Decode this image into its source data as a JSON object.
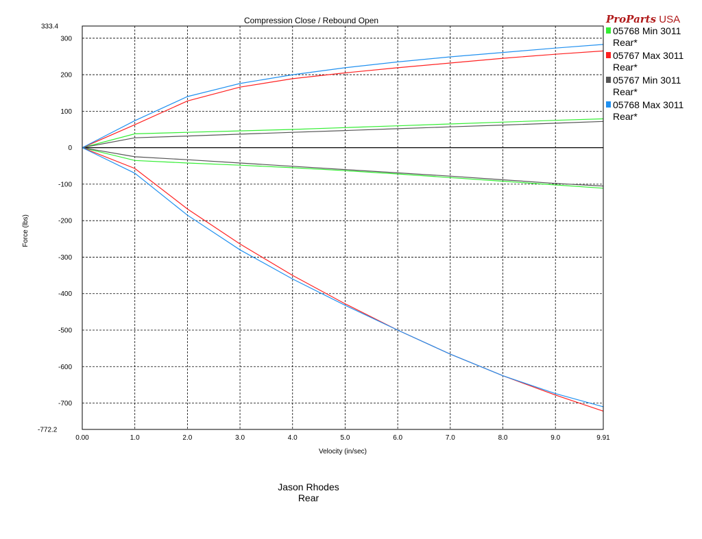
{
  "brand": {
    "part1": "ProParts",
    "part2": " USA"
  },
  "footer": {
    "rider": "Jason Rhodes",
    "position": "Rear"
  },
  "colors": {
    "green": "#33ee33",
    "red": "#ff2020",
    "gray": "#555555",
    "blue": "#2090f0"
  },
  "chart_data": {
    "type": "line",
    "title": "Compression Close / Rebound Open",
    "xlabel": "Velocity (in/sec)",
    "ylabel": "Force (lbs)",
    "xlim": [
      0,
      9.91
    ],
    "ylim": [
      -772.2,
      333.4
    ],
    "x_ticks": [
      0,
      1,
      2,
      3,
      4,
      5,
      6,
      7,
      8,
      9,
      9.91
    ],
    "x_tick_labels": [
      "0.00",
      "1.0",
      "2.0",
      "3.0",
      "4.0",
      "5.0",
      "6.0",
      "7.0",
      "8.0",
      "9.0",
      "9.91"
    ],
    "y_ticks": [
      333.4,
      300,
      200,
      100,
      0,
      -100,
      -200,
      -300,
      -400,
      -500,
      -600,
      -700,
      -772.2
    ],
    "y_tick_labels": [
      "333.4",
      "300",
      "200",
      "100",
      "0",
      "-100",
      "-200",
      "-300",
      "-400",
      "-500",
      "-600",
      "-700",
      "-772.2"
    ],
    "grid": true,
    "legend_position": "top-right",
    "series": [
      {
        "name": "05768 Min 3011 Rear*",
        "color": "#33ee33",
        "compression": {
          "x": [
            0,
            1,
            2,
            3,
            4,
            5,
            6,
            7,
            8,
            9,
            9.91
          ],
          "y": [
            0,
            38,
            42,
            46,
            50,
            55,
            60,
            65,
            70,
            75,
            79
          ]
        },
        "rebound": {
          "x": [
            0,
            1,
            2,
            3,
            4,
            5,
            6,
            7,
            8,
            9,
            9.91
          ],
          "y": [
            0,
            -35,
            -42,
            -48,
            -55,
            -63,
            -72,
            -82,
            -92,
            -102,
            -111
          ]
        }
      },
      {
        "name": "05767 Max 3011 Rear*",
        "color": "#ff2020",
        "compression": {
          "x": [
            0,
            1,
            2,
            3,
            4,
            5,
            6,
            7,
            8,
            9,
            9.91
          ],
          "y": [
            0,
            63,
            128,
            166,
            189,
            205,
            219,
            232,
            245,
            256,
            265
          ]
        },
        "rebound": {
          "x": [
            0,
            1,
            2,
            3,
            4,
            5,
            6,
            7,
            8,
            9,
            9.91
          ],
          "y": [
            0,
            -57,
            -168,
            -264,
            -350,
            -428,
            -500,
            -566,
            -625,
            -678,
            -722
          ]
        }
      },
      {
        "name": "05767 Min 3011 Rear*",
        "color": "#555555",
        "compression": {
          "x": [
            0,
            1,
            2,
            3,
            4,
            5,
            6,
            7,
            8,
            9,
            9.91
          ],
          "y": [
            0,
            27,
            32,
            37,
            42,
            47,
            52,
            57,
            62,
            67,
            72
          ]
        },
        "rebound": {
          "x": [
            0,
            1,
            2,
            3,
            4,
            5,
            6,
            7,
            8,
            9,
            9.91
          ],
          "y": [
            0,
            -25,
            -33,
            -42,
            -51,
            -60,
            -69,
            -78,
            -88,
            -98,
            -105
          ]
        }
      },
      {
        "name": "05768 Max 3011 Rear*",
        "color": "#2090f0",
        "compression": {
          "x": [
            0,
            1,
            2,
            3,
            4,
            5,
            6,
            7,
            8,
            9,
            9.91
          ],
          "y": [
            0,
            74,
            140,
            176,
            200,
            219,
            235,
            249,
            261,
            273,
            283
          ]
        },
        "rebound": {
          "x": [
            0,
            1,
            2,
            3,
            4,
            5,
            6,
            7,
            8,
            9,
            9.91
          ],
          "y": [
            0,
            -70,
            -185,
            -280,
            -360,
            -432,
            -500,
            -566,
            -625,
            -674,
            -710
          ]
        }
      }
    ]
  }
}
